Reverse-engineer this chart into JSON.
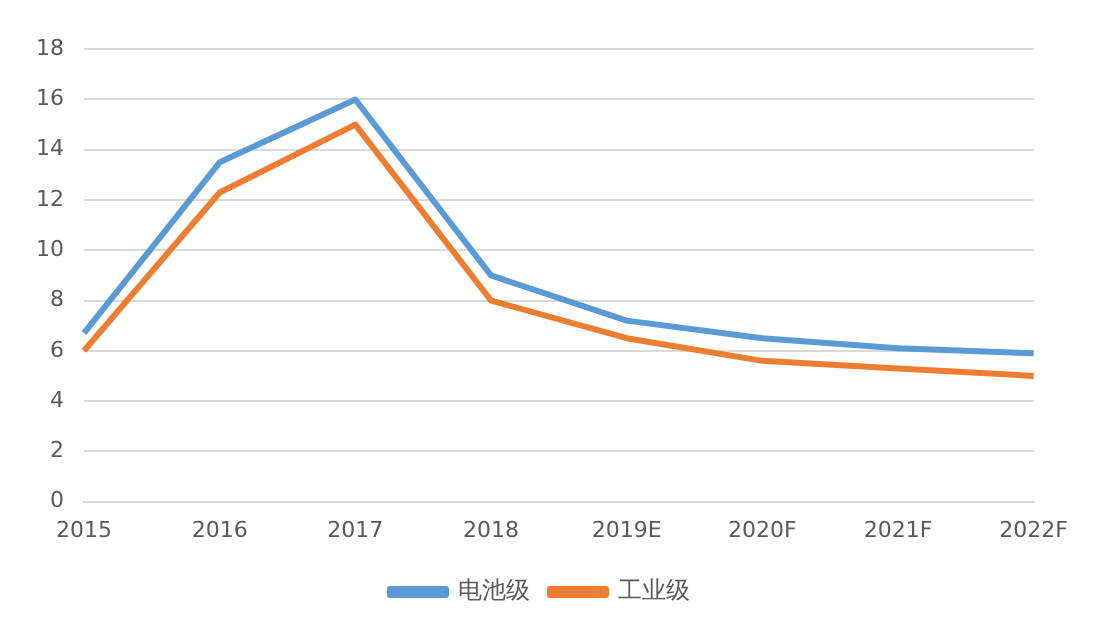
{
  "chart_data": {
    "type": "line",
    "categories": [
      "2015",
      "2016",
      "2017",
      "2018",
      "2019E",
      "2020F",
      "2021F",
      "2022F"
    ],
    "series": [
      {
        "name": "电池级",
        "color": "#5b9bd5",
        "values": [
          6.7,
          13.5,
          16.0,
          9.0,
          7.2,
          6.5,
          6.1,
          5.9
        ]
      },
      {
        "name": "工业级",
        "color": "#ed7d31",
        "values": [
          6.0,
          12.3,
          15.0,
          8.0,
          6.5,
          5.6,
          5.3,
          5.0
        ]
      }
    ],
    "ylim": [
      0,
      18
    ],
    "yticks": [
      0,
      2,
      4,
      6,
      8,
      10,
      12,
      14,
      16,
      18
    ],
    "grid": "y",
    "legend": "bottom",
    "marker": "none",
    "line_style": "solid"
  }
}
